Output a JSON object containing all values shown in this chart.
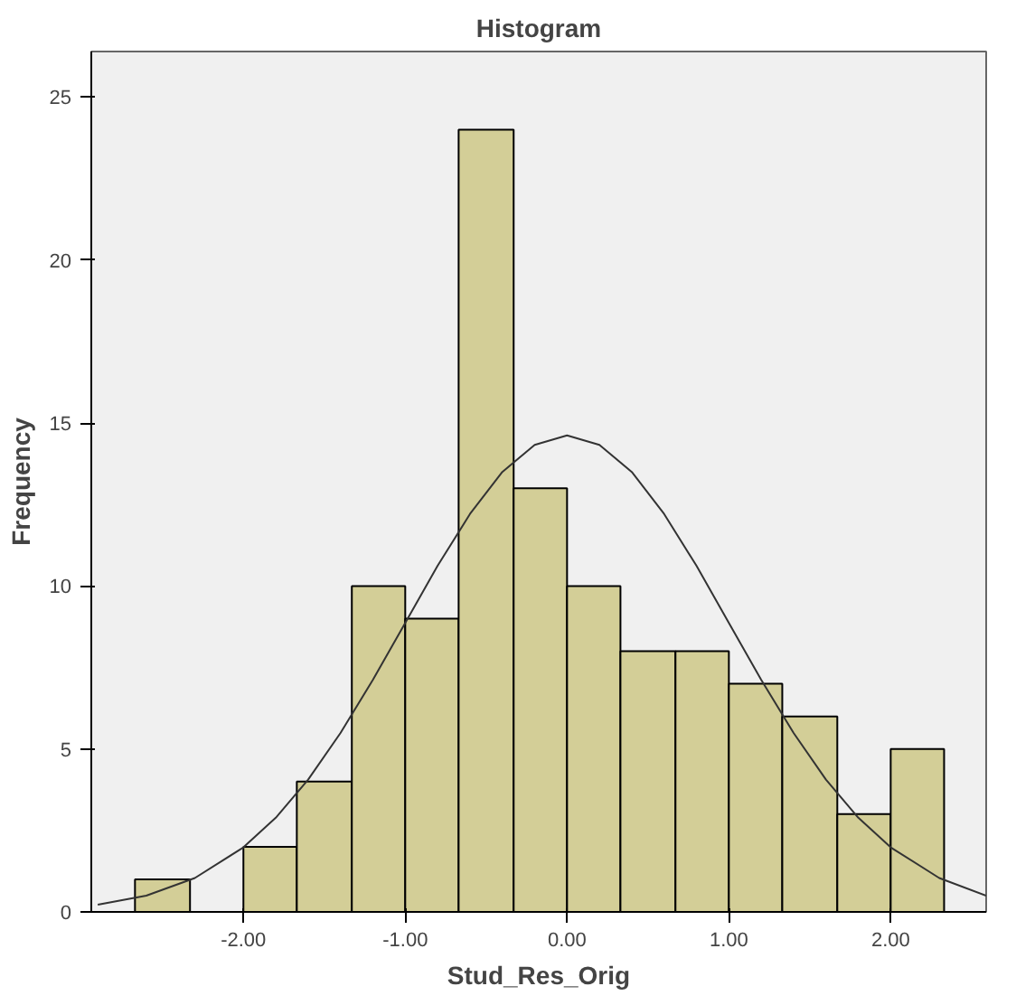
{
  "chart_data": {
    "type": "histogram",
    "title": "Histogram",
    "xlabel": "Stud_Res_Orig",
    "ylabel": "Frequency",
    "bins": [
      -2.67,
      -2.33,
      -2,
      -1.67,
      -1.33,
      -1,
      -0.67,
      -0.33,
      0,
      0.33,
      0.67,
      1,
      1.33,
      1.67,
      2,
      2.33
    ],
    "values": [
      1,
      0,
      2,
      4,
      10,
      9,
      24,
      13,
      10,
      8,
      8,
      7,
      6,
      3,
      5
    ],
    "color": "#d3ce97",
    "series": [
      {
        "type": "line",
        "color": "#333333",
        "x": [
          -2.9,
          -2.6,
          -2.3,
          -2.0,
          -1.8,
          -1.6,
          -1.4,
          -1.2,
          -1.0,
          -0.8,
          -0.6,
          -0.4,
          -0.2,
          0,
          0.2,
          0.4,
          0.6,
          0.8,
          1.0,
          1.2,
          1.4,
          1.6,
          1.8,
          2.0,
          2.3,
          2.59
        ],
        "values": [
          0.22,
          0.5,
          1.04,
          1.98,
          2.89,
          4.06,
          5.49,
          7.12,
          8.87,
          10.62,
          12.21,
          13.5,
          14.33,
          14.62,
          14.33,
          13.5,
          12.21,
          10.62,
          8.87,
          7.12,
          5.49,
          4.06,
          2.89,
          1.98,
          1.04,
          0.5
        ]
      }
    ],
    "xlim": [
      -2.94,
      2.59
    ],
    "ylim": [
      0,
      26.4
    ],
    "xticks": [
      {
        "value": -2,
        "label": "-2.00"
      },
      {
        "value": -1,
        "label": "-1.00"
      },
      {
        "value": 0,
        "label": "0.00"
      },
      {
        "value": 1,
        "label": "1.00"
      },
      {
        "value": 2,
        "label": "2.00"
      }
    ],
    "yticks": [
      0,
      5,
      10,
      15,
      20,
      25
    ],
    "grid": false
  }
}
